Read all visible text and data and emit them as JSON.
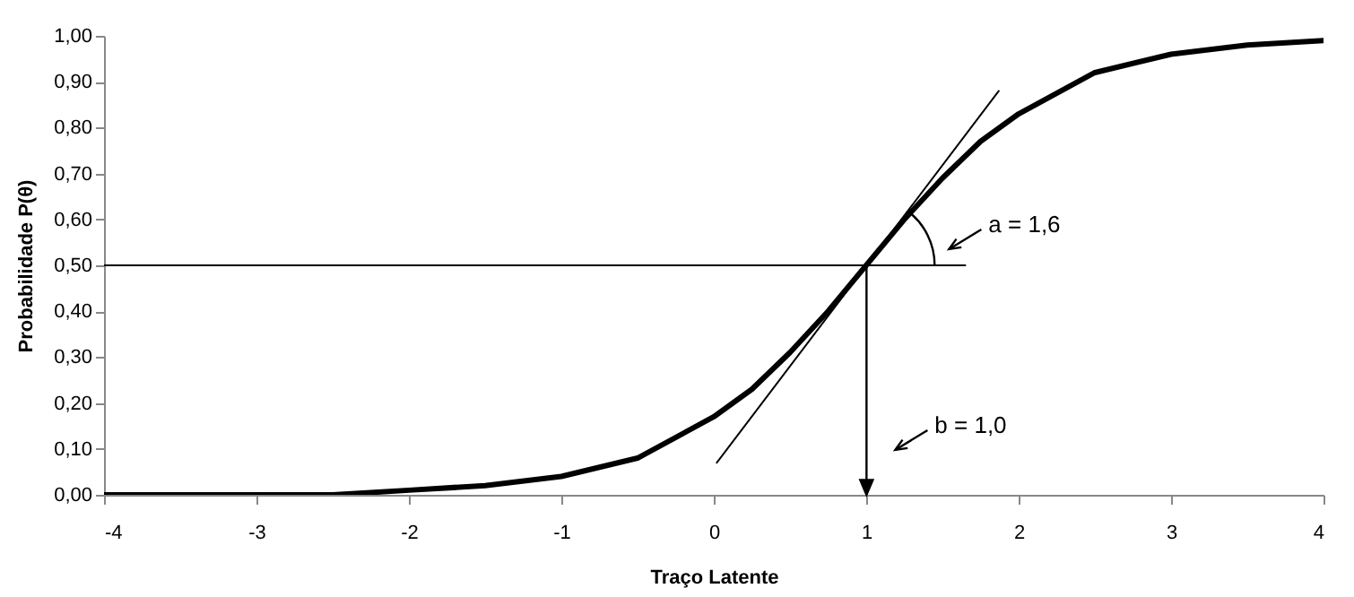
{
  "chart_data": {
    "type": "line",
    "xlabel": "Traço Latente",
    "ylabel": "Probabilidade P(θ)",
    "xlim": [
      -4,
      4
    ],
    "xticks": [
      -4,
      -3,
      -2,
      -1,
      0,
      1,
      2,
      3,
      4
    ],
    "ylim": [
      0,
      1
    ],
    "yticks": [
      {
        "value": 0,
        "label": "0,00"
      },
      {
        "value": 0.1,
        "label": "0,10"
      },
      {
        "value": 0.2,
        "label": "0,20"
      },
      {
        "value": 0.3,
        "label": "0,30"
      },
      {
        "value": 0.4,
        "label": "0,40"
      },
      {
        "value": 0.5,
        "label": "0,50"
      },
      {
        "value": 0.6,
        "label": "0,60"
      },
      {
        "value": 0.7,
        "label": "0,70"
      },
      {
        "value": 0.8,
        "label": "0,80"
      },
      {
        "value": 0.9,
        "label": "0,90"
      },
      {
        "value": 1,
        "label": "1,00"
      }
    ],
    "series": [
      {
        "color": "#000000",
        "x": [
          -4,
          -3.5,
          -3,
          -2.5,
          -2,
          -1.5,
          -1,
          -0.5,
          0,
          0.25,
          0.5,
          0.75,
          1,
          1.25,
          1.5,
          1.75,
          2,
          2.5,
          3,
          3.5,
          4
        ],
        "values": [
          0.0,
          0.0,
          0.0,
          0.0,
          0.01,
          0.02,
          0.04,
          0.08,
          0.17,
          0.23,
          0.31,
          0.4,
          0.5,
          0.6,
          0.69,
          0.77,
          0.83,
          0.92,
          0.96,
          0.98,
          0.99
        ]
      },
      {
        "color": "#000000",
        "x": [
          0.02,
          1.87
        ],
        "values": [
          0.07,
          0.88
        ]
      },
      {
        "color": "#000000",
        "x": [
          -4,
          1.65
        ],
        "values": [
          0.5,
          0.5
        ]
      }
    ],
    "annotations": [
      "a = 1,6",
      "b = 1,0"
    ],
    "grid": false,
    "marker": "none",
    "line_style": "solid"
  }
}
